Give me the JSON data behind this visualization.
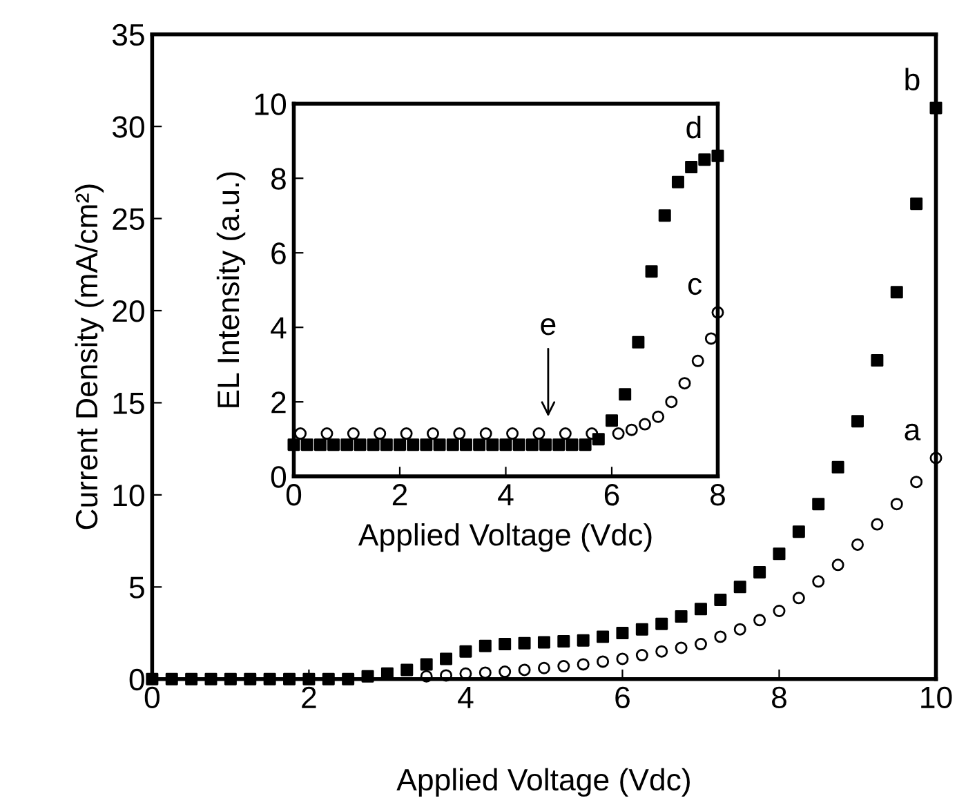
{
  "chart_data": [
    {
      "type": "scatter",
      "xlabel": "Applied Voltage (Vdc)",
      "ylabel": "Current Density (mA/cm²)",
      "xlim": [
        0,
        10
      ],
      "ylim": [
        0,
        35
      ],
      "xticks": [
        0,
        2,
        4,
        6,
        8,
        10
      ],
      "yticks": [
        0,
        5,
        10,
        15,
        20,
        25,
        30,
        35
      ],
      "grid": false,
      "legend": false,
      "series": [
        {
          "name": "a",
          "color": "#000000",
          "marker": "circle",
          "x": [
            3.5,
            3.75,
            4,
            4.25,
            4.5,
            4.75,
            5,
            5.25,
            5.5,
            5.75,
            6,
            6.25,
            6.5,
            6.75,
            7,
            7.25,
            7.5,
            7.75,
            8,
            8.25,
            8.5,
            8.75,
            9,
            9.25,
            9.5,
            9.75,
            10
          ],
          "values": [
            0.15,
            0.2,
            0.3,
            0.35,
            0.4,
            0.5,
            0.6,
            0.7,
            0.8,
            0.95,
            1.1,
            1.3,
            1.5,
            1.7,
            1.9,
            2.3,
            2.7,
            3.2,
            3.7,
            4.4,
            5.3,
            6.2,
            7.3,
            8.4,
            9.5,
            10.7,
            12
          ]
        },
        {
          "name": "b",
          "color": "#000000",
          "marker": "square",
          "x": [
            0,
            0.25,
            0.5,
            0.75,
            1,
            1.25,
            1.5,
            1.75,
            2,
            2.25,
            2.5,
            2.75,
            3,
            3.25,
            3.5,
            3.75,
            4,
            4.25,
            4.5,
            4.75,
            5,
            5.25,
            5.5,
            5.75,
            6,
            6.25,
            6.5,
            6.75,
            7,
            7.25,
            7.5,
            7.75,
            8,
            8.25,
            8.5,
            8.75,
            9,
            9.25,
            9.5,
            9.75,
            10
          ],
          "values": [
            0,
            0,
            0,
            0,
            0,
            0,
            0,
            0,
            0,
            0,
            0,
            0.15,
            0.3,
            0.5,
            0.8,
            1.1,
            1.5,
            1.8,
            1.9,
            1.95,
            2.0,
            2.05,
            2.1,
            2.3,
            2.5,
            2.7,
            3.0,
            3.4,
            3.8,
            4.3,
            5.0,
            5.8,
            6.8,
            8.0,
            9.5,
            11.5,
            14,
            17.3,
            21,
            25.8,
            31
          ]
        }
      ]
    },
    {
      "type": "scatter",
      "xlabel": "Applied Voltage (Vdc)",
      "ylabel": "EL Intensity (a.u.)",
      "xlim": [
        0,
        8
      ],
      "ylim": [
        0,
        10
      ],
      "xticks": [
        0,
        2,
        4,
        6,
        8
      ],
      "yticks": [
        0,
        2,
        4,
        6,
        8,
        10
      ],
      "grid": false,
      "legend": false,
      "annotations": [
        "e"
      ],
      "series": [
        {
          "name": "c",
          "color": "#000000",
          "marker": "circle",
          "x": [
            0.125,
            0.625,
            1.125,
            1.625,
            2.125,
            2.625,
            3.125,
            3.625,
            4.125,
            4.625,
            5.125,
            5.625,
            6.125,
            6.375,
            6.625,
            6.875,
            7.125,
            7.375,
            7.625,
            7.875,
            8
          ],
          "values": [
            1.15,
            1.15,
            1.15,
            1.15,
            1.15,
            1.15,
            1.15,
            1.15,
            1.15,
            1.15,
            1.15,
            1.15,
            1.15,
            1.25,
            1.4,
            1.6,
            2.0,
            2.5,
            3.1,
            3.7,
            4.4
          ]
        },
        {
          "name": "d",
          "color": "#000000",
          "marker": "square",
          "x": [
            0,
            0.25,
            0.5,
            0.75,
            1,
            1.25,
            1.5,
            1.75,
            2,
            2.25,
            2.5,
            2.75,
            3,
            3.25,
            3.5,
            3.75,
            4,
            4.25,
            4.5,
            4.75,
            5,
            5.25,
            5.5,
            5.75,
            6,
            6.25,
            6.5,
            6.75,
            7,
            7.25,
            7.5,
            7.75,
            8
          ],
          "values": [
            0.85,
            0.85,
            0.85,
            0.85,
            0.85,
            0.85,
            0.85,
            0.85,
            0.85,
            0.85,
            0.85,
            0.85,
            0.85,
            0.85,
            0.85,
            0.85,
            0.85,
            0.85,
            0.85,
            0.85,
            0.85,
            0.85,
            0.85,
            1.0,
            1.5,
            2.2,
            3.6,
            5.5,
            7,
            7.9,
            8.3,
            8.5,
            8.6
          ]
        }
      ]
    }
  ]
}
